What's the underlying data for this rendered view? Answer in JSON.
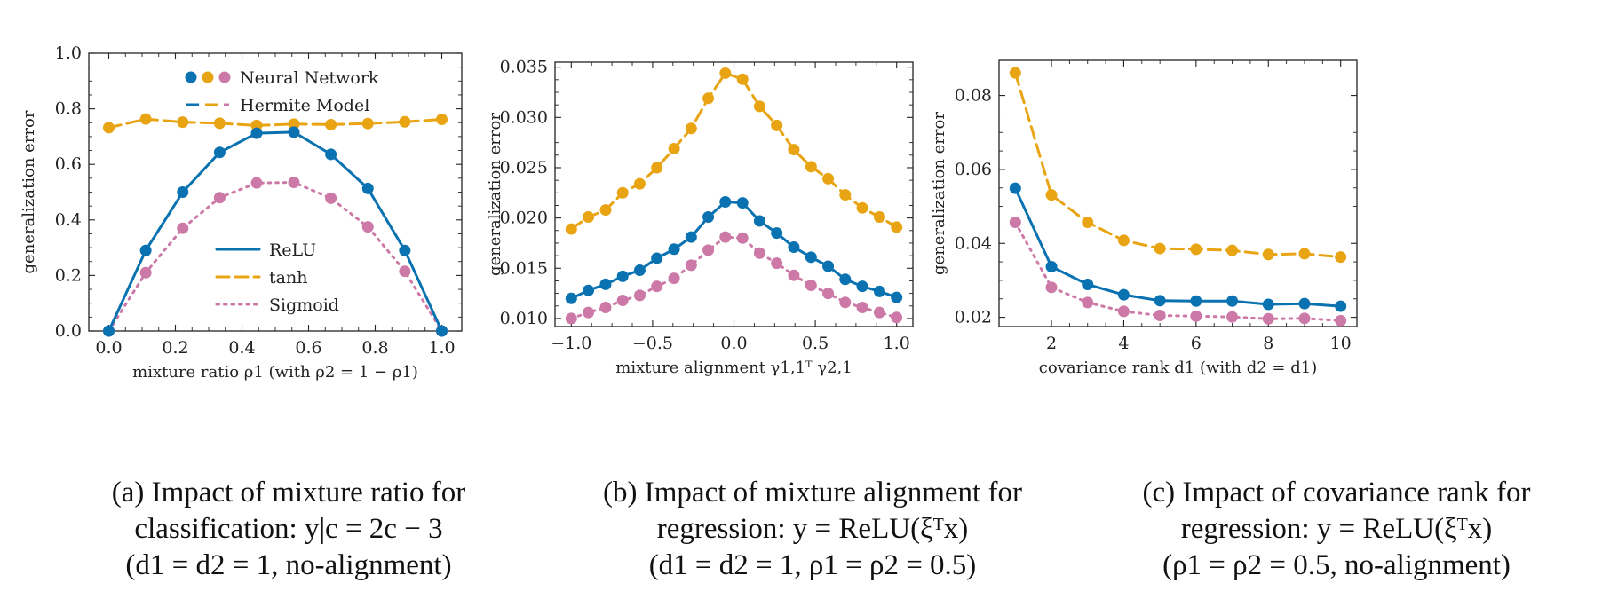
{
  "colors": {
    "ReLU": "#0a72b0",
    "tanh": "#e8a412",
    "Sigmoid": "#cc79a7"
  },
  "legend": {
    "markers_label": "Neural Network",
    "hermite_label": "Hermite Model",
    "relu_label": "ReLU",
    "tanh_label": "tanh",
    "sigmoid_label": "Sigmoid"
  },
  "captions": [
    {
      "lines": [
        "(a) Impact of mixture ratio for",
        "classification: y|c = 2c − 3",
        "(d1 = d2 = 1, no-alignment)"
      ]
    },
    {
      "lines": [
        "(b) Impact of mixture alignment for",
        "regression: y = ReLU(ξᵀx)",
        "(d1 = d2 = 1, ρ1 = ρ2 = 0.5)"
      ]
    },
    {
      "lines": [
        "(c) Impact of covariance rank for",
        "regression: y = ReLU(ξᵀx)",
        "(ρ1 = ρ2 = 0.5, no-alignment)"
      ]
    }
  ],
  "chart_data": [
    {
      "type": "line",
      "xlabel": "mixture ratio ρ1 (with ρ2 = 1 − ρ1)",
      "ylabel": "generalization error",
      "xlim": [
        -0.06,
        1.06
      ],
      "ylim": [
        0.0,
        1.0
      ],
      "xticks": [
        0.0,
        0.2,
        0.4,
        0.6,
        0.8,
        1.0
      ],
      "xtick_labels": [
        "0.0",
        "0.2",
        "0.4",
        "0.6",
        "0.8",
        "1.0"
      ],
      "yticks": [
        0.0,
        0.2,
        0.4,
        0.6,
        0.8,
        1.0
      ],
      "ytick_labels": [
        "0.0",
        "0.2",
        "0.4",
        "0.6",
        "0.8",
        "1.0"
      ],
      "legend_position": "top-center and lower-center",
      "x": [
        0.0,
        0.111,
        0.222,
        0.333,
        0.444,
        0.556,
        0.667,
        0.778,
        0.889,
        1.0
      ],
      "series": [
        {
          "name": "ReLU",
          "style": "solid",
          "values": [
            0.0,
            0.29,
            0.5,
            0.643,
            0.712,
            0.716,
            0.636,
            0.513,
            0.29,
            0.0
          ]
        },
        {
          "name": "tanh",
          "style": "dashed",
          "values": [
            0.732,
            0.763,
            0.752,
            0.748,
            0.74,
            0.745,
            0.743,
            0.747,
            0.753,
            0.762
          ]
        },
        {
          "name": "Sigmoid",
          "style": "dotted",
          "values": [
            0.0,
            0.21,
            0.37,
            0.48,
            0.533,
            0.535,
            0.478,
            0.375,
            0.215,
            0.0
          ]
        }
      ]
    },
    {
      "type": "line",
      "xlabel": "mixture alignment γ1,1ᵀ γ2,1",
      "ylabel": "generalization error",
      "xlim": [
        -1.1,
        1.1
      ],
      "ylim": [
        0.0092,
        0.0355
      ],
      "xticks": [
        -1.0,
        -0.5,
        0.0,
        0.5,
        1.0
      ],
      "xtick_labels": [
        "−1.0",
        "−0.5",
        "0.0",
        "0.5",
        "1.0"
      ],
      "yticks": [
        0.01,
        0.015,
        0.02,
        0.025,
        0.03,
        0.035
      ],
      "ytick_labels": [
        "0.010",
        "0.015",
        "0.020",
        "0.025",
        "0.030",
        "0.035"
      ],
      "x": [
        -1.0,
        -0.895,
        -0.789,
        -0.684,
        -0.579,
        -0.474,
        -0.368,
        -0.263,
        -0.158,
        -0.053,
        0.053,
        0.158,
        0.263,
        0.368,
        0.474,
        0.579,
        0.684,
        0.789,
        0.895,
        1.0
      ],
      "series": [
        {
          "name": "ReLU",
          "style": "solid",
          "values": [
            0.012,
            0.0128,
            0.0134,
            0.0142,
            0.0148,
            0.016,
            0.0169,
            0.0181,
            0.0201,
            0.0216,
            0.0215,
            0.0197,
            0.0185,
            0.0171,
            0.0161,
            0.0152,
            0.0139,
            0.0132,
            0.0127,
            0.0121
          ]
        },
        {
          "name": "tanh",
          "style": "dashed",
          "values": [
            0.0189,
            0.0201,
            0.0208,
            0.0225,
            0.0234,
            0.025,
            0.0269,
            0.0289,
            0.0319,
            0.0344,
            0.0338,
            0.0311,
            0.0292,
            0.0268,
            0.0251,
            0.0239,
            0.0223,
            0.021,
            0.0201,
            0.0191
          ]
        },
        {
          "name": "Sigmoid",
          "style": "dotted",
          "values": [
            0.01,
            0.0106,
            0.0111,
            0.0118,
            0.0123,
            0.0132,
            0.014,
            0.0153,
            0.0168,
            0.0181,
            0.018,
            0.0165,
            0.0155,
            0.0143,
            0.0133,
            0.0125,
            0.0116,
            0.0111,
            0.0106,
            0.0101
          ]
        }
      ]
    },
    {
      "type": "line",
      "xlabel": "covariance rank d1 (with d2 = d1)",
      "ylabel": "generalization error",
      "xlim": [
        0.55,
        10.45
      ],
      "ylim": [
        0.0175,
        0.0895
      ],
      "xticks": [
        2,
        4,
        6,
        8,
        10
      ],
      "xtick_labels": [
        "2",
        "4",
        "6",
        "8",
        "10"
      ],
      "yticks": [
        0.02,
        0.04,
        0.06,
        0.08
      ],
      "ytick_labels": [
        "0.02",
        "0.04",
        "0.06",
        "0.08"
      ],
      "x": [
        1,
        2,
        3,
        4,
        5,
        6,
        7,
        8,
        9,
        10
      ],
      "series": [
        {
          "name": "ReLU",
          "style": "solid",
          "values": [
            0.0549,
            0.0337,
            0.0289,
            0.0261,
            0.0245,
            0.0244,
            0.0244,
            0.0235,
            0.0237,
            0.023
          ]
        },
        {
          "name": "tanh",
          "style": "dashed",
          "values": [
            0.0861,
            0.0531,
            0.0457,
            0.0408,
            0.0386,
            0.0384,
            0.0381,
            0.037,
            0.0372,
            0.0363
          ]
        },
        {
          "name": "Sigmoid",
          "style": "dotted",
          "values": [
            0.0457,
            0.0281,
            0.024,
            0.0216,
            0.0205,
            0.0203,
            0.0201,
            0.0196,
            0.0197,
            0.0191
          ]
        }
      ]
    }
  ]
}
